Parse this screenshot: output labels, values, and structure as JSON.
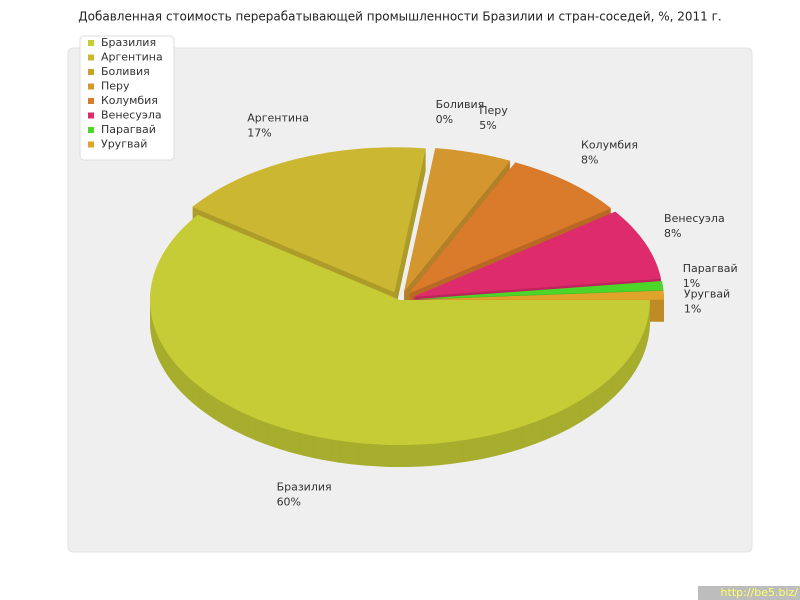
{
  "chart_data": {
    "type": "pie",
    "title": "Добавленная стоимость перерабатывающей промышленности Бразилии и стран-соседей, %, 2011 г.",
    "categories": [
      "Бразилия",
      "Аргентина",
      "Боливия",
      "Перу",
      "Колумбия",
      "Венесуэла",
      "Парагвай",
      "Уругвай"
    ],
    "values": [
      60,
      17,
      0,
      5,
      8,
      8,
      1,
      1
    ],
    "value_labels": [
      "60%",
      "17%",
      "0%",
      "5%",
      "8%",
      "8%",
      "1%",
      "1%"
    ],
    "colors": [
      "#c5cc35",
      "#cbb731",
      "#c9a12d",
      "#d4962f",
      "#d97b2a",
      "#de2b6c",
      "#4cd62a",
      "#e0a42c"
    ],
    "legend": "top-left"
  },
  "watermark": "http://be5.biz/"
}
